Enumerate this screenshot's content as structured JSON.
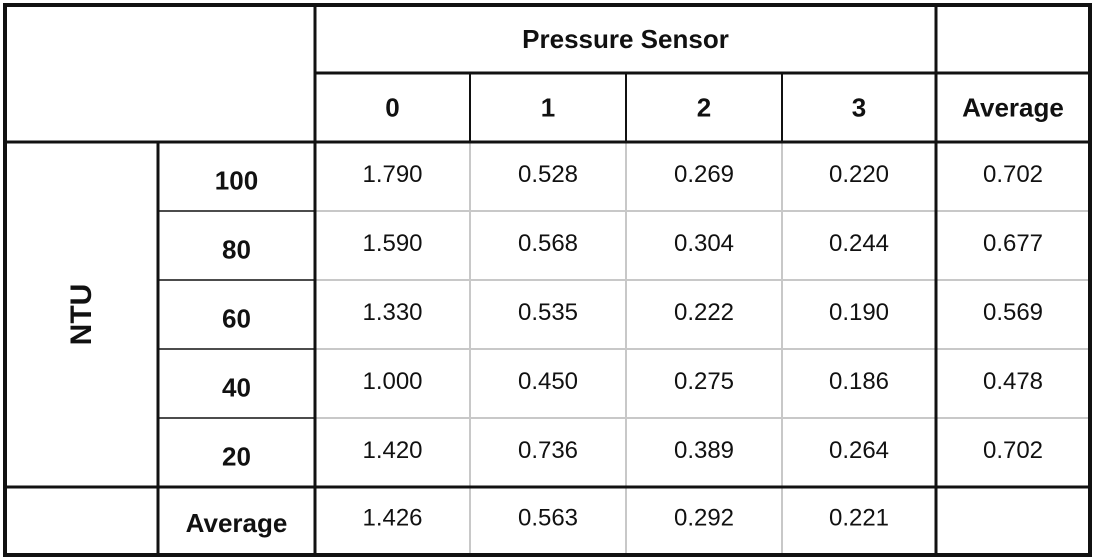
{
  "chart_data": {
    "type": "table",
    "group_header": "Pressure Sensor",
    "row_group_label": "NTU",
    "columns": [
      "0",
      "1",
      "2",
      "3"
    ],
    "average_label": "Average",
    "rows": [
      {
        "label": "100",
        "values": [
          "1.790",
          "0.528",
          "0.269",
          "0.220"
        ],
        "average": "0.702"
      },
      {
        "label": "80",
        "values": [
          "1.590",
          "0.568",
          "0.304",
          "0.244"
        ],
        "average": "0.677"
      },
      {
        "label": "60",
        "values": [
          "1.330",
          "0.535",
          "0.222",
          "0.190"
        ],
        "average": "0.569"
      },
      {
        "label": "40",
        "values": [
          "1.000",
          "0.450",
          "0.275",
          "0.186"
        ],
        "average": "0.478"
      },
      {
        "label": "20",
        "values": [
          "1.420",
          "0.736",
          "0.389",
          "0.264"
        ],
        "average": "0.702"
      }
    ],
    "column_averages": [
      "1.426",
      "0.563",
      "0.292",
      "0.221"
    ]
  },
  "colors": {
    "border": "#111111",
    "inner_grid": "#c8c8c8",
    "text": "#111111"
  }
}
